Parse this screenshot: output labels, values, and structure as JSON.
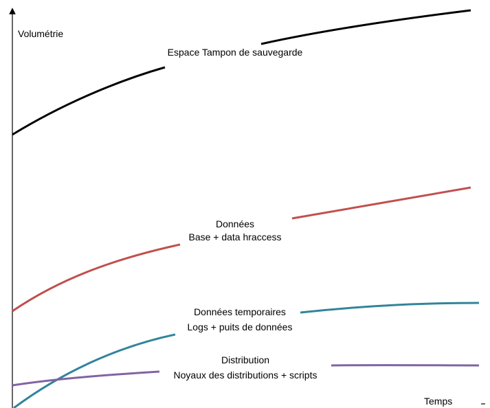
{
  "axes": {
    "y_label": "Volumétrie",
    "x_label": "Temps"
  },
  "curves": [
    {
      "id": "backup",
      "color": "#000000",
      "label_lines": [
        "Espace Tampon de sauvegarde"
      ]
    },
    {
      "id": "data",
      "color": "#c0504d",
      "label_lines": [
        "Données",
        "Base + data hraccess"
      ]
    },
    {
      "id": "temp",
      "color": "#31849b",
      "label_lines": [
        "Données temporaires",
        "Logs + puits de données"
      ]
    },
    {
      "id": "distrib",
      "color": "#8064a2",
      "label_lines": [
        "Distribution",
        "Noyaux des distributions + scripts"
      ]
    }
  ]
}
